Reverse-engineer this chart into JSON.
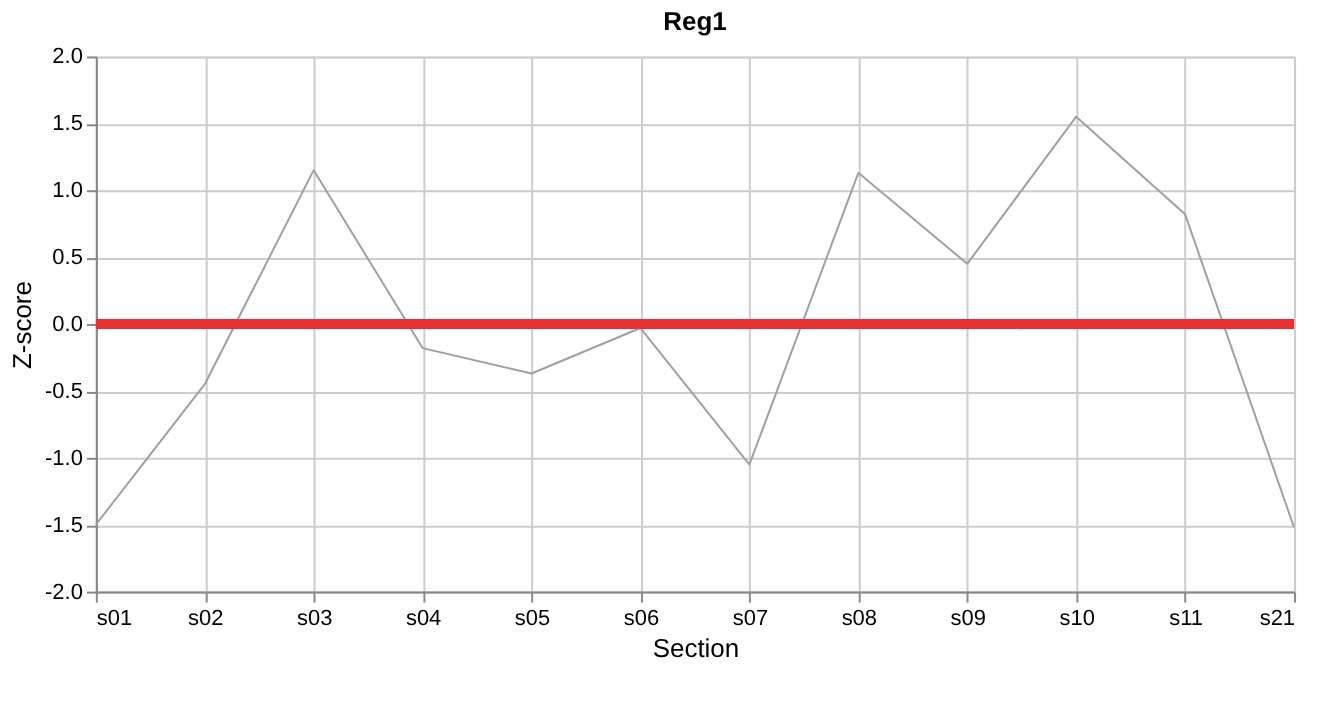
{
  "chart_data": {
    "type": "line",
    "title": "Reg1",
    "xlabel": "Section",
    "ylabel": "Z-score",
    "categories": [
      "s01",
      "s02",
      "s03",
      "s04",
      "s05",
      "s06",
      "s07",
      "s08",
      "s09",
      "s10",
      "s11",
      "s21"
    ],
    "series": [
      {
        "color": "#a0a0a0",
        "values": [
          -1.5,
          -0.45,
          1.15,
          -0.18,
          -0.37,
          -0.03,
          -1.05,
          1.13,
          0.45,
          1.55,
          0.82,
          -1.52
        ]
      }
    ],
    "ylim": [
      -2,
      2
    ],
    "yticks": [
      {
        "value": -2,
        "label": "-2.0"
      },
      {
        "value": -1.5,
        "label": "-1.5"
      },
      {
        "value": -1,
        "label": "-1.0"
      },
      {
        "value": -0.5,
        "label": "-0.5"
      },
      {
        "value": 0,
        "label": "0.0"
      },
      {
        "value": 0.5,
        "label": "0.5"
      },
      {
        "value": 1,
        "label": "1.0"
      },
      {
        "value": 1.5,
        "label": "1.5"
      },
      {
        "value": 2,
        "label": "2.0"
      }
    ],
    "ref_lines": [
      {
        "axis": "y",
        "value": 0,
        "color": "#e83030"
      }
    ],
    "grid": true,
    "marker": "none",
    "line_style": "solid"
  }
}
